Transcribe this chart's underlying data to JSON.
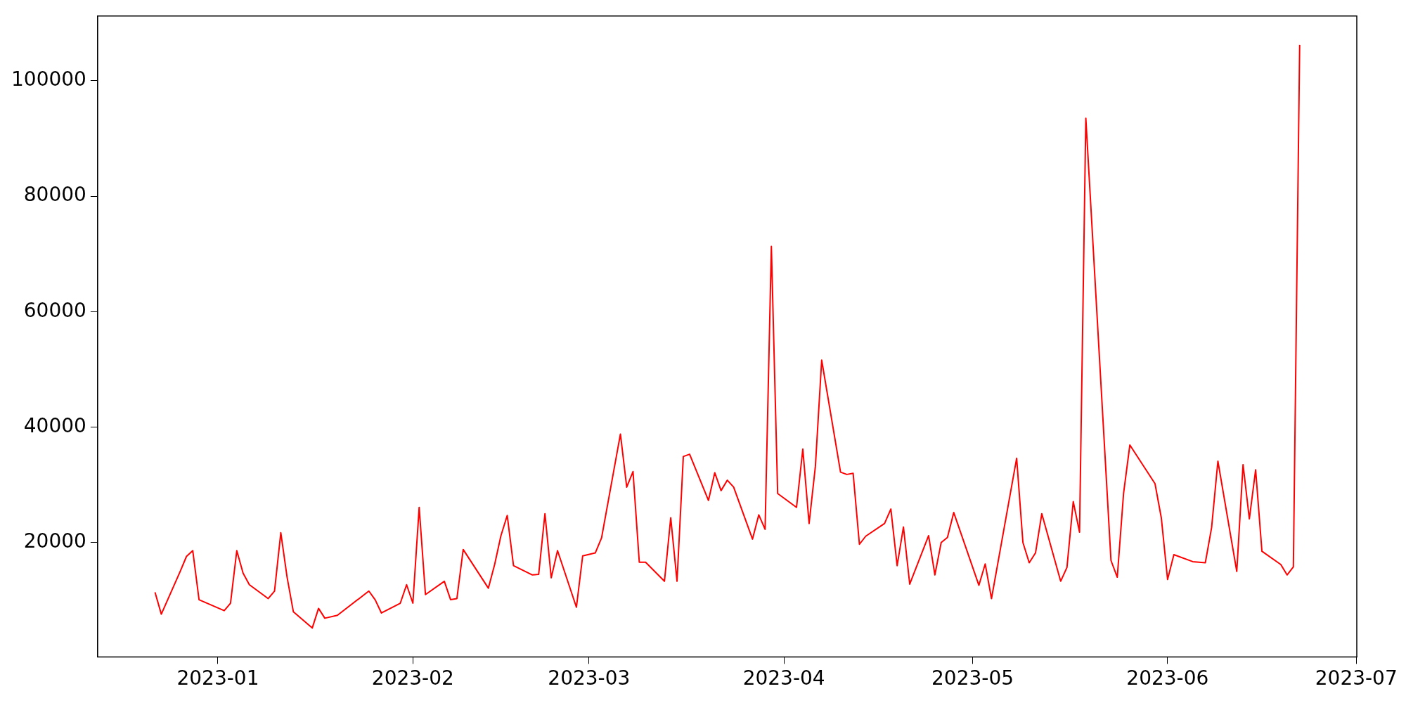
{
  "chart_data": {
    "type": "line",
    "x": [
      "2022-12-22",
      "2022-12-23",
      "2022-12-26",
      "2022-12-27",
      "2022-12-28",
      "2022-12-29",
      "2023-01-02",
      "2023-01-03",
      "2023-01-04",
      "2023-01-05",
      "2023-01-06",
      "2023-01-09",
      "2023-01-10",
      "2023-01-11",
      "2023-01-12",
      "2023-01-13",
      "2023-01-16",
      "2023-01-17",
      "2023-01-18",
      "2023-01-20",
      "2023-01-25",
      "2023-01-26",
      "2023-01-27",
      "2023-01-30",
      "2023-01-31",
      "2023-02-01",
      "2023-02-02",
      "2023-02-03",
      "2023-02-06",
      "2023-02-07",
      "2023-02-08",
      "2023-02-09",
      "2023-02-13",
      "2023-02-14",
      "2023-02-15",
      "2023-02-16",
      "2023-02-17",
      "2023-02-20",
      "2023-02-21",
      "2023-02-22",
      "2023-02-23",
      "2023-02-24",
      "2023-02-27",
      "2023-02-28",
      "2023-03-02",
      "2023-03-03",
      "2023-03-06",
      "2023-03-07",
      "2023-03-08",
      "2023-03-09",
      "2023-03-10",
      "2023-03-13",
      "2023-03-14",
      "2023-03-15",
      "2023-03-16",
      "2023-03-17",
      "2023-03-20",
      "2023-03-21",
      "2023-03-22",
      "2023-03-23",
      "2023-03-24",
      "2023-03-27",
      "2023-03-28",
      "2023-03-29",
      "2023-03-30",
      "2023-03-31",
      "2023-04-03",
      "2023-04-04",
      "2023-04-05",
      "2023-04-06",
      "2023-04-07",
      "2023-04-10",
      "2023-04-11",
      "2023-04-12",
      "2023-04-13",
      "2023-04-14",
      "2023-04-17",
      "2023-04-18",
      "2023-04-19",
      "2023-04-20",
      "2023-04-21",
      "2023-04-24",
      "2023-04-25",
      "2023-04-26",
      "2023-04-27",
      "2023-04-28",
      "2023-05-02",
      "2023-05-03",
      "2023-05-04",
      "2023-05-08",
      "2023-05-09",
      "2023-05-10",
      "2023-05-11",
      "2023-05-12",
      "2023-05-15",
      "2023-05-16",
      "2023-05-17",
      "2023-05-18",
      "2023-05-19",
      "2023-05-23",
      "2023-05-24",
      "2023-05-25",
      "2023-05-26",
      "2023-05-30",
      "2023-05-31",
      "2023-06-01",
      "2023-06-02",
      "2023-06-05",
      "2023-06-07",
      "2023-06-08",
      "2023-06-09",
      "2023-06-12",
      "2023-06-13",
      "2023-06-14",
      "2023-06-15",
      "2023-06-16",
      "2023-06-19",
      "2023-06-20",
      "2023-06-21",
      "2023-06-22"
    ],
    "series": [
      {
        "color": "#ff0000",
        "values": [
          11400,
          7600,
          15000,
          17600,
          18600,
          10100,
          8200,
          9500,
          18600,
          14700,
          12700,
          10300,
          11600,
          21700,
          14000,
          8000,
          5200,
          8600,
          6900,
          7400,
          11600,
          10100,
          7800,
          9500,
          12700,
          9500,
          26100,
          11000,
          13300,
          10100,
          10300,
          18800,
          12100,
          16200,
          21200,
          24700,
          16000,
          14400,
          14500,
          25000,
          13900,
          18600,
          8800,
          17700,
          18200,
          20800,
          38800,
          29600,
          32300,
          16600,
          16600,
          13300,
          24300,
          13300,
          34900,
          35300,
          27300,
          32100,
          29000,
          30800,
          29600,
          20600,
          24800,
          22300,
          71300,
          28500,
          26100,
          36200,
          23300,
          33200,
          51600,
          32200,
          31800,
          32000,
          19700,
          21100,
          23300,
          25800,
          16000,
          22700,
          12800,
          21200,
          14400,
          20000,
          20900,
          25200,
          12600,
          16300,
          10300,
          34600,
          20000,
          16500,
          18200,
          25000,
          13300,
          15700,
          27100,
          21800,
          93500,
          16900,
          14000,
          28500,
          36900,
          30200,
          24300,
          13600,
          17900,
          16700,
          16500,
          22600,
          34100,
          15000,
          33500,
          24100,
          32600,
          18500,
          16200,
          14400,
          15800,
          106200
        ]
      }
    ],
    "xlim": [
      "2022-12-12T21:00",
      "2023-07-01T02:00"
    ],
    "xticks": [
      "2023-01",
      "2023-02",
      "2023-03",
      "2023-04",
      "2023-05",
      "2023-06",
      "2023-07"
    ],
    "ylim": [
      200,
      111200
    ],
    "yticks": [
      20000,
      40000,
      60000,
      80000,
      100000
    ],
    "grid": false,
    "legend": false,
    "marker": "none",
    "line_style": "solid"
  }
}
